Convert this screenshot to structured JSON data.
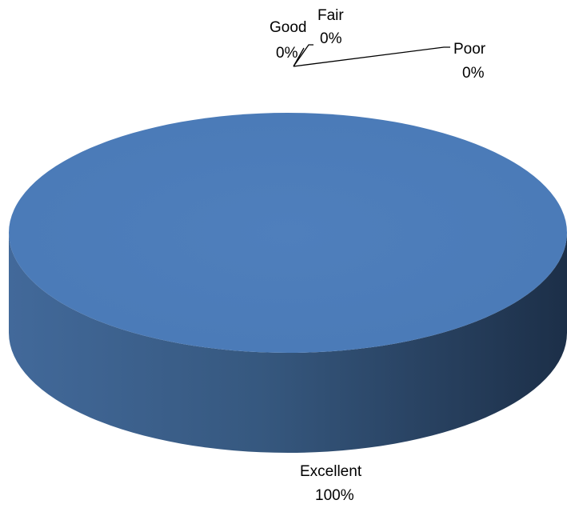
{
  "chart_data": {
    "type": "pie",
    "style": "3d",
    "categories": [
      "Excellent",
      "Good",
      "Fair",
      "Poor"
    ],
    "values": [
      100,
      0,
      0,
      0
    ],
    "value_labels": [
      "100%",
      "0%",
      "0%",
      "0%"
    ],
    "colors": {
      "slice_top": "#4f81bd",
      "slice_side_light": "#4a72a4",
      "slice_side_dark": "#1f3350",
      "leader_line": "#000000"
    }
  }
}
